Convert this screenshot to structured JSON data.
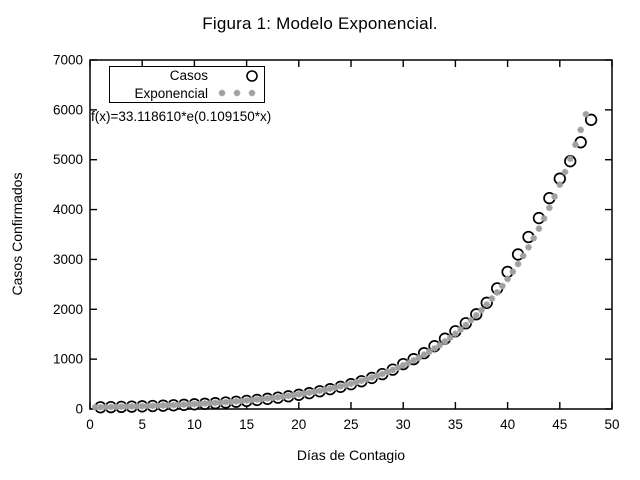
{
  "title": "Figura 1: Modelo Exponencial.",
  "axes": {
    "xlabel": "Días de Contagio",
    "ylabel": "Casos Confirmados"
  },
  "legend": {
    "items": [
      {
        "label": "Casos",
        "marker": "open-circle"
      },
      {
        "label": "Exponencial",
        "marker": "asterisk"
      }
    ]
  },
  "annotation": "f(x)=33.118610*e(0.109150*x)",
  "colors": {
    "foreground": "#000000",
    "casos_marker": "#000000",
    "exponencial_marker": "#a0a0a0",
    "background": "#ffffff"
  },
  "chart_data": {
    "type": "scatter",
    "title": "Figura 1: Modelo Exponencial.",
    "xlabel": "Días de Contagio",
    "ylabel": "Casos Confirmados",
    "xlim": [
      0,
      50
    ],
    "ylim": [
      0,
      7000
    ],
    "x_ticks": [
      0,
      5,
      10,
      15,
      20,
      25,
      30,
      35,
      40,
      45,
      50
    ],
    "y_ticks": [
      0,
      1000,
      2000,
      3000,
      4000,
      5000,
      6000,
      7000
    ],
    "grid": false,
    "legend_position": "top-left",
    "series": [
      {
        "name": "Casos",
        "marker": "open-circle",
        "color": "#000000",
        "x": [
          1,
          2,
          3,
          4,
          5,
          6,
          7,
          8,
          9,
          10,
          11,
          12,
          13,
          14,
          15,
          16,
          17,
          18,
          19,
          20,
          21,
          22,
          23,
          24,
          25,
          26,
          27,
          28,
          29,
          30,
          31,
          32,
          33,
          34,
          35,
          36,
          37,
          38,
          39,
          40,
          41,
          42,
          43,
          44,
          45,
          46,
          47,
          48
        ],
        "y": [
          35,
          38,
          43,
          48,
          54,
          60,
          67,
          75,
          84,
          94,
          105,
          117,
          131,
          146,
          163,
          182,
          204,
          228,
          255,
          285,
          318,
          356,
          398,
          445,
          498,
          557,
          623,
          700,
          790,
          900,
          1000,
          1120,
          1260,
          1410,
          1560,
          1720,
          1900,
          2130,
          2420,
          2750,
          3100,
          3450,
          3830,
          4230,
          4620,
          4970,
          5350,
          5800
        ]
      },
      {
        "name": "Exponencial",
        "marker": "asterisk",
        "color": "#a0a0a0",
        "formula": "f(x)=33.118610*e(0.109150*x)",
        "a": 33.11861,
        "b": 0.10915,
        "x_min": 0.5,
        "x_max": 47.5,
        "x_step": 0.5
      }
    ]
  }
}
